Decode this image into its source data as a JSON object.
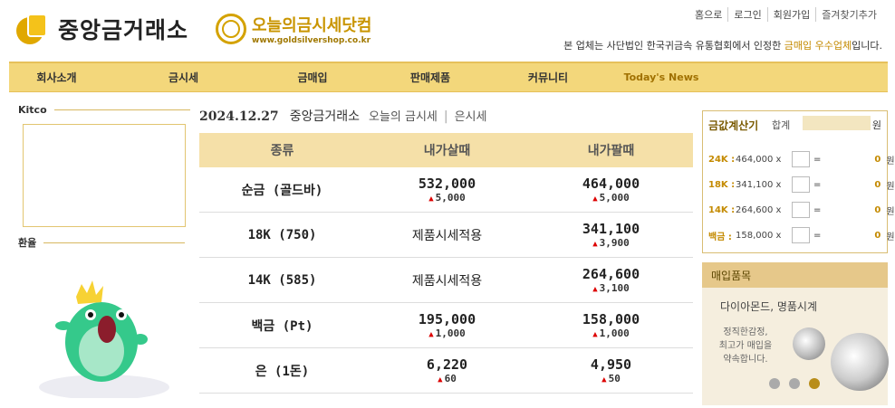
{
  "brand": {
    "name": "중앙금거래소",
    "site_name": "오늘의금시세닷컴",
    "site_url": "www.goldsilvershop.co.kr"
  },
  "top_links": [
    "홈으로",
    "로그인",
    "회원가입",
    "즐겨찾기추가"
  ],
  "tagline": {
    "pre": "본 업체는 사단법인 한국귀금속 유통협회에서 인정한 ",
    "hl": "금매입 우수업체",
    "post": "입니다."
  },
  "nav": [
    "회사소개",
    "금시세",
    "금매입",
    "판매제품",
    "커뮤니티",
    "Today's News"
  ],
  "sidebar": {
    "kitco": "Kitco",
    "fx": "환율"
  },
  "main": {
    "date": "2024.12.27",
    "store": "중앙금거래소",
    "link1": "오늘의 금시세",
    "link2": "은시세"
  },
  "table": {
    "headers": [
      "종류",
      "내가살때",
      "내가팔때"
    ],
    "rows": [
      {
        "name": "순금 (골드바)",
        "buy": "532,000",
        "buy_delta": "5,000",
        "sell": "464,000",
        "sell_delta": "5,000"
      },
      {
        "name": "18K (750)",
        "buy": "제품시세적용",
        "buy_delta": "",
        "sell": "341,100",
        "sell_delta": "3,900"
      },
      {
        "name": "14K (585)",
        "buy": "제품시세적용",
        "buy_delta": "",
        "sell": "264,600",
        "sell_delta": "3,100"
      },
      {
        "name": "백금 (Pt)",
        "buy": "195,000",
        "buy_delta": "1,000",
        "sell": "158,000",
        "sell_delta": "1,000"
      },
      {
        "name": "은 (1돈)",
        "buy": "6,220",
        "buy_delta": "60",
        "sell": "4,950",
        "sell_delta": "50"
      }
    ]
  },
  "calc": {
    "title": "금값계산기",
    "total_label": "합계",
    "won": "원",
    "rows": [
      {
        "k": "24K :",
        "p": "464,000 x",
        "eq": "=",
        "res": "0",
        "u": "원"
      },
      {
        "k": "18K :",
        "p": "341,100 x",
        "eq": "=",
        "res": "0",
        "u": "원"
      },
      {
        "k": "14K :",
        "p": "264,600 x",
        "eq": "=",
        "res": "0",
        "u": "원"
      },
      {
        "k": "백금 :",
        "p": "158,000 x",
        "eq": "=",
        "res": "0",
        "u": "원"
      }
    ]
  },
  "buy": {
    "title": "매입품목",
    "sub": "다이아몬드, 명품시계",
    "small": "정직한감정,\n최고가 매입을\n약속합니다."
  },
  "colors": {
    "nav_bg": "#f3d77b",
    "accent": "#c48a00",
    "up": "#d00000"
  }
}
